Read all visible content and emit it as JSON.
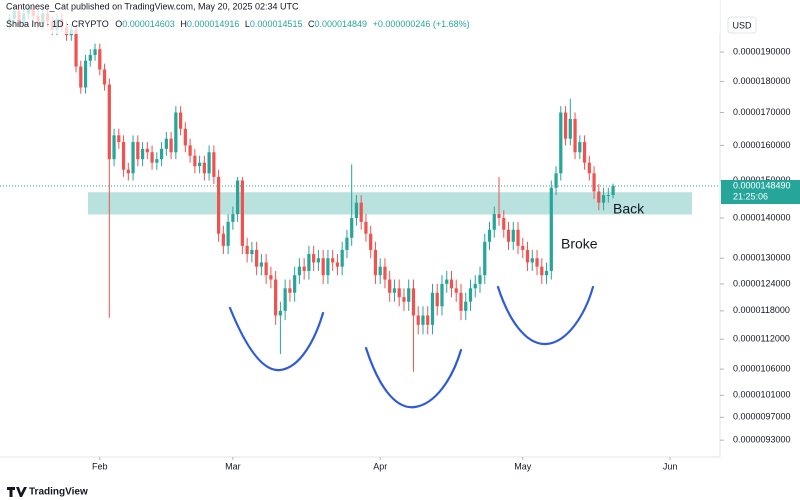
{
  "author_line": "Cantonese_Cat published on TradingView.com, May 20, 2025 02:34 UTC",
  "brand": "TradingView",
  "chart_data": {
    "type": "candlestick",
    "symbol": "Shiba Inu · 1D · CRYPTO",
    "ohlc_fields": [
      "O",
      "H",
      "L",
      "C"
    ],
    "change": "+0.000000246 (+1.68%)",
    "currency": "USD",
    "log_scale": true,
    "grid": false,
    "up_color": "#26a69a",
    "down_color": "#ef5350",
    "zone": [
      1.409e-05,
      1.468e-05
    ],
    "zone_color": "#80cbc4",
    "annotations": [
      "Broke",
      "Back"
    ],
    "countdown": "21:25:06",
    "last_price": {
      "value": 1.4849e-05,
      "label": "0.0000148490"
    },
    "xlim": [
      -2,
      149.5
    ],
    "xticks": [
      {
        "value": 19,
        "label": "Feb"
      },
      {
        "value": 47,
        "label": "Mar"
      },
      {
        "value": 78,
        "label": "Apr"
      },
      {
        "value": 108,
        "label": "May"
      },
      {
        "value": 139,
        "label": "Jun"
      }
    ],
    "ylim": [
      9.05e-06,
      2.053e-05
    ],
    "yticks": [
      {
        "value": 1.9e-05,
        "label": "0.0000190000"
      },
      {
        "value": 1.8e-05,
        "label": "0.0000180000"
      },
      {
        "value": 1.7e-05,
        "label": "0.0000170000"
      },
      {
        "value": 1.6e-05,
        "label": "0.0000160000"
      },
      {
        "value": 1.5e-05,
        "label": "0.0000150000"
      },
      {
        "value": 1.4e-05,
        "label": "0.0000140000"
      },
      {
        "value": 1.3e-05,
        "label": "0.0000130000"
      },
      {
        "value": 1.24e-05,
        "label": "0.0000124000"
      },
      {
        "value": 1.18e-05,
        "label": "0.0000118000"
      },
      {
        "value": 1.12e-05,
        "label": "0.0000112000"
      },
      {
        "value": 1.06e-05,
        "label": "0.0000106000"
      },
      {
        "value": 1.01e-05,
        "label": "0.0000101000"
      },
      {
        "value": 9.7e-06,
        "label": "0.0000097000"
      },
      {
        "value": 9.3e-06,
        "label": "0.0000093000"
      }
    ],
    "ohlc": [
      [
        2e-05,
        2.04e-05,
        1.98e-05,
        2.02e-05
      ],
      [
        2.02e-05,
        2.07e-05,
        2e-05,
        2.05e-05
      ],
      [
        2.05e-05,
        2.07e-05,
        1.99e-05,
        2.01e-05
      ],
      [
        2.01e-05,
        2.06e-05,
        1.99e-05,
        2.04e-05
      ],
      [
        2.04e-05,
        2.08e-05,
        2.02e-05,
        2.06e-05
      ],
      [
        2.06e-05,
        2.08e-05,
        2.01e-05,
        2.03e-05
      ],
      [
        2.03e-05,
        2.05e-05,
        1.98e-05,
        2e-05
      ],
      [
        2e-05,
        2.06e-05,
        1.98e-05,
        2.04e-05
      ],
      [
        2.04e-05,
        2.06e-05,
        1.99e-05,
        2.01e-05
      ],
      [
        2.01e-05,
        2.03e-05,
        1.96e-05,
        1.98e-05
      ],
      [
        1.98e-05,
        2.04e-05,
        1.96e-05,
        2.02e-05
      ],
      [
        2.02e-05,
        2.04e-05,
        1.97e-05,
        1.99e-05
      ],
      [
        1.99e-05,
        2.01e-05,
        1.94e-05,
        1.96e-05
      ],
      [
        1.96e-05,
        2e-05,
        1.94e-05,
        1.98e-05
      ],
      [
        1.98e-05,
        2e-05,
        1.83e-05,
        1.85e-05
      ],
      [
        1.85e-05,
        1.87e-05,
        1.76e-05,
        1.78e-05
      ],
      [
        1.78e-05,
        1.89e-05,
        1.76e-05,
        1.87e-05
      ],
      [
        1.87e-05,
        1.91e-05,
        1.85e-05,
        1.89e-05
      ],
      [
        1.89e-05,
        1.93e-05,
        1.87e-05,
        1.91e-05
      ],
      [
        1.91e-05,
        1.93e-05,
        1.82e-05,
        1.84e-05
      ],
      [
        1.84e-05,
        1.86e-05,
        1.77e-05,
        1.79e-05
      ],
      [
        1.79e-05,
        1.81e-05,
        1.165e-05,
        1.56e-05
      ],
      [
        1.56e-05,
        1.65e-05,
        1.54e-05,
        1.63e-05
      ],
      [
        1.63e-05,
        1.65e-05,
        1.59e-05,
        1.61e-05
      ],
      [
        1.61e-05,
        1.63e-05,
        1.51e-05,
        1.53e-05
      ],
      [
        1.53e-05,
        1.55e-05,
        1.5e-05,
        1.52e-05
      ],
      [
        1.52e-05,
        1.63e-05,
        1.5e-05,
        1.61e-05
      ],
      [
        1.61e-05,
        1.63e-05,
        1.54e-05,
        1.56e-05
      ],
      [
        1.56e-05,
        1.61e-05,
        1.54e-05,
        1.59e-05
      ],
      [
        1.59e-05,
        1.61e-05,
        1.56e-05,
        1.58e-05
      ],
      [
        1.58e-05,
        1.6e-05,
        1.53e-05,
        1.55e-05
      ],
      [
        1.55e-05,
        1.58e-05,
        1.53e-05,
        1.56e-05
      ],
      [
        1.56e-05,
        1.61e-05,
        1.54e-05,
        1.59e-05
      ],
      [
        1.59e-05,
        1.64e-05,
        1.57e-05,
        1.62e-05
      ],
      [
        1.62e-05,
        1.64e-05,
        1.56e-05,
        1.58e-05
      ],
      [
        1.58e-05,
        1.72e-05,
        1.56e-05,
        1.7e-05
      ],
      [
        1.7e-05,
        1.72e-05,
        1.63e-05,
        1.65e-05
      ],
      [
        1.65e-05,
        1.67e-05,
        1.58e-05,
        1.6e-05
      ],
      [
        1.6e-05,
        1.62e-05,
        1.55e-05,
        1.57e-05
      ],
      [
        1.57e-05,
        1.59e-05,
        1.52e-05,
        1.54e-05
      ],
      [
        1.54e-05,
        1.57e-05,
        1.52e-05,
        1.55e-05
      ],
      [
        1.55e-05,
        1.57e-05,
        1.5e-05,
        1.52e-05
      ],
      [
        1.52e-05,
        1.6e-05,
        1.5e-05,
        1.58e-05
      ],
      [
        1.58e-05,
        1.6e-05,
        1.49e-05,
        1.51e-05
      ],
      [
        1.51e-05,
        1.53e-05,
        1.34e-05,
        1.36e-05
      ],
      [
        1.36e-05,
        1.38e-05,
        1.31e-05,
        1.33e-05
      ],
      [
        1.33e-05,
        1.41e-05,
        1.31e-05,
        1.39e-05
      ],
      [
        1.39e-05,
        1.43e-05,
        1.37e-05,
        1.41e-05
      ],
      [
        1.41e-05,
        1.51e-05,
        1.39e-05,
        1.5e-05
      ],
      [
        1.5e-05,
        1.51e-05,
        1.31e-05,
        1.33e-05
      ],
      [
        1.33e-05,
        1.35e-05,
        1.29e-05,
        1.31e-05
      ],
      [
        1.31e-05,
        1.34e-05,
        1.29e-05,
        1.32e-05
      ],
      [
        1.32e-05,
        1.34e-05,
        1.26e-05,
        1.28e-05
      ],
      [
        1.28e-05,
        1.31e-05,
        1.26e-05,
        1.29e-05
      ],
      [
        1.29e-05,
        1.31e-05,
        1.24e-05,
        1.26e-05
      ],
      [
        1.26e-05,
        1.28e-05,
        1.23e-05,
        1.25e-05
      ],
      [
        1.25e-05,
        1.27e-05,
        1.15e-05,
        1.17e-05
      ],
      [
        1.17e-05,
        1.2e-05,
        1.09e-05,
        1.18e-05
      ],
      [
        1.18e-05,
        1.25e-05,
        1.16e-05,
        1.23e-05
      ],
      [
        1.23e-05,
        1.25e-05,
        1.2e-05,
        1.22e-05
      ],
      [
        1.22e-05,
        1.28e-05,
        1.2e-05,
        1.26e-05
      ],
      [
        1.26e-05,
        1.3e-05,
        1.24e-05,
        1.28e-05
      ],
      [
        1.28e-05,
        1.3e-05,
        1.25e-05,
        1.27e-05
      ],
      [
        1.27e-05,
        1.33e-05,
        1.25e-05,
        1.31e-05
      ],
      [
        1.31e-05,
        1.33e-05,
        1.27e-05,
        1.29e-05
      ],
      [
        1.29e-05,
        1.32e-05,
        1.27e-05,
        1.3e-05
      ],
      [
        1.3e-05,
        1.32e-05,
        1.24e-05,
        1.26e-05
      ],
      [
        1.26e-05,
        1.32e-05,
        1.24e-05,
        1.3e-05
      ],
      [
        1.3e-05,
        1.32e-05,
        1.27e-05,
        1.29e-05
      ],
      [
        1.29e-05,
        1.31e-05,
        1.26e-05,
        1.28e-05
      ],
      [
        1.28e-05,
        1.34e-05,
        1.26e-05,
        1.32e-05
      ],
      [
        1.32e-05,
        1.37e-05,
        1.3e-05,
        1.35e-05
      ],
      [
        1.35e-05,
        1.545e-05,
        1.33e-05,
        1.4e-05
      ],
      [
        1.4e-05,
        1.46e-05,
        1.38e-05,
        1.44e-05
      ],
      [
        1.44e-05,
        1.46e-05,
        1.37e-05,
        1.39e-05
      ],
      [
        1.39e-05,
        1.41e-05,
        1.34e-05,
        1.36e-05
      ],
      [
        1.36e-05,
        1.38e-05,
        1.3e-05,
        1.32e-05
      ],
      [
        1.32e-05,
        1.34e-05,
        1.24e-05,
        1.26e-05
      ],
      [
        1.26e-05,
        1.3e-05,
        1.24e-05,
        1.28e-05
      ],
      [
        1.28e-05,
        1.3e-05,
        1.23e-05,
        1.25e-05
      ],
      [
        1.25e-05,
        1.27e-05,
        1.2e-05,
        1.22e-05
      ],
      [
        1.22e-05,
        1.25e-05,
        1.2e-05,
        1.23e-05
      ],
      [
        1.23e-05,
        1.25e-05,
        1.19e-05,
        1.21e-05
      ],
      [
        1.21e-05,
        1.23e-05,
        1.18e-05,
        1.2e-05
      ],
      [
        1.2e-05,
        1.25e-05,
        1.18e-05,
        1.23e-05
      ],
      [
        1.23e-05,
        1.25e-05,
        1.055e-05,
        1.17e-05
      ],
      [
        1.17e-05,
        1.19e-05,
        1.13e-05,
        1.15e-05
      ],
      [
        1.15e-05,
        1.19e-05,
        1.13e-05,
        1.17e-05
      ],
      [
        1.17e-05,
        1.19e-05,
        1.13e-05,
        1.15e-05
      ],
      [
        1.15e-05,
        1.24e-05,
        1.13e-05,
        1.22e-05
      ],
      [
        1.22e-05,
        1.24e-05,
        1.17e-05,
        1.19e-05
      ],
      [
        1.19e-05,
        1.26e-05,
        1.17e-05,
        1.24e-05
      ],
      [
        1.24e-05,
        1.27e-05,
        1.22e-05,
        1.25e-05
      ],
      [
        1.25e-05,
        1.27e-05,
        1.21e-05,
        1.23e-05
      ],
      [
        1.23e-05,
        1.25e-05,
        1.2e-05,
        1.22e-05
      ],
      [
        1.22e-05,
        1.24e-05,
        1.16e-05,
        1.18e-05
      ],
      [
        1.18e-05,
        1.22e-05,
        1.16e-05,
        1.2e-05
      ],
      [
        1.2e-05,
        1.25e-05,
        1.18e-05,
        1.23e-05
      ],
      [
        1.23e-05,
        1.26e-05,
        1.21e-05,
        1.24e-05
      ],
      [
        1.24e-05,
        1.28e-05,
        1.22e-05,
        1.26e-05
      ],
      [
        1.26e-05,
        1.36e-05,
        1.24e-05,
        1.34e-05
      ],
      [
        1.34e-05,
        1.39e-05,
        1.32e-05,
        1.37e-05
      ],
      [
        1.37e-05,
        1.43e-05,
        1.35e-05,
        1.41e-05
      ],
      [
        1.41e-05,
        1.51e-05,
        1.38e-05,
        1.4e-05
      ],
      [
        1.4e-05,
        1.42e-05,
        1.35e-05,
        1.37e-05
      ],
      [
        1.37e-05,
        1.39e-05,
        1.32e-05,
        1.34e-05
      ],
      [
        1.34e-05,
        1.39e-05,
        1.32e-05,
        1.37e-05
      ],
      [
        1.37e-05,
        1.39e-05,
        1.31e-05,
        1.33e-05
      ],
      [
        1.33e-05,
        1.35e-05,
        1.3e-05,
        1.32e-05
      ],
      [
        1.32e-05,
        1.34e-05,
        1.27e-05,
        1.29e-05
      ],
      [
        1.29e-05,
        1.32e-05,
        1.27e-05,
        1.3e-05
      ],
      [
        1.3e-05,
        1.32e-05,
        1.26e-05,
        1.28e-05
      ],
      [
        1.28e-05,
        1.3e-05,
        1.24e-05,
        1.26e-05
      ],
      [
        1.26e-05,
        1.29e-05,
        1.24e-05,
        1.27e-05
      ],
      [
        1.27e-05,
        1.5e-05,
        1.25e-05,
        1.48e-05
      ],
      [
        1.48e-05,
        1.54e-05,
        1.46e-05,
        1.52e-05
      ],
      [
        1.52e-05,
        1.72e-05,
        1.5e-05,
        1.7e-05
      ],
      [
        1.7e-05,
        1.72e-05,
        1.6e-05,
        1.62e-05
      ],
      [
        1.62e-05,
        1.744e-05,
        1.6e-05,
        1.68e-05
      ],
      [
        1.68e-05,
        1.7e-05,
        1.56e-05,
        1.58e-05
      ],
      [
        1.58e-05,
        1.63e-05,
        1.56e-05,
        1.61e-05
      ],
      [
        1.61e-05,
        1.63e-05,
        1.53e-05,
        1.55e-05
      ],
      [
        1.55e-05,
        1.57e-05,
        1.5e-05,
        1.52e-05
      ],
      [
        1.52e-05,
        1.54e-05,
        1.45e-05,
        1.47e-05
      ],
      [
        1.47e-05,
        1.49e-05,
        1.42e-05,
        1.44e-05
      ],
      [
        1.44e-05,
        1.48e-05,
        1.42e-05,
        1.46e-05
      ],
      [
        1.46e-05,
        1.48e-05,
        1.44e-05,
        1.4603e-05
      ],
      [
        1.4603e-05,
        1.4916e-05,
        1.4515e-05,
        1.4849e-05
      ]
    ]
  }
}
